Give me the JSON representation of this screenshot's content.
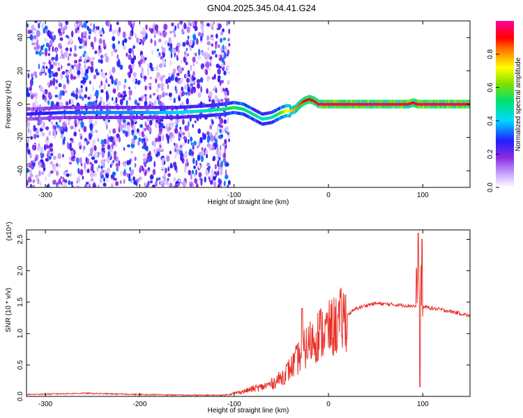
{
  "figure": {
    "title": "GN04.2025.345.04.41.G24"
  },
  "chart_data": [
    {
      "type": "heatmap",
      "name": "spectrogram",
      "xlabel": "Height of straight line (km)",
      "ylabel": "Frequency (Hz)",
      "xlim": [
        -320,
        150
      ],
      "ylim": [
        -50,
        50
      ],
      "xticks": [
        -300,
        -200,
        -100,
        0,
        100
      ],
      "yticks": [
        -40,
        -20,
        0,
        20,
        40
      ],
      "colorbar": {
        "label": "Normalized spectral amplitude",
        "range": [
          0,
          1
        ],
        "ticks": [
          "0.0",
          "0.2",
          "0.4",
          "0.6",
          "0.8"
        ],
        "tick_values": [
          0.0,
          0.2,
          0.4,
          0.6,
          0.8
        ],
        "colormap": "rainbow (white-violet-blue-cyan-green-yellow-red-magenta)"
      },
      "ridge": {
        "x": [
          -320,
          -280,
          -240,
          -200,
          -160,
          -130,
          -110,
          -100,
          -90,
          -80,
          -70,
          -60,
          -50,
          -45,
          -40,
          -35,
          -30,
          -25,
          -20,
          -15,
          -10,
          -5,
          0,
          50,
          85,
          90,
          95,
          150
        ],
        "y": [
          -6,
          -5,
          -5,
          -5,
          -5,
          -4,
          -3,
          -2,
          -3,
          -6,
          -9,
          -8,
          -5,
          -4,
          -4,
          -3,
          0,
          2,
          3,
          2,
          0,
          0,
          0,
          0,
          0,
          1,
          0,
          0
        ],
        "amplitude": [
          0.25,
          0.3,
          0.35,
          0.35,
          0.4,
          0.45,
          0.5,
          0.55,
          0.5,
          0.5,
          0.45,
          0.45,
          0.6,
          0.7,
          0.75,
          0.8,
          0.85,
          0.9,
          0.9,
          0.9,
          0.95,
          0.95,
          0.95,
          0.95,
          0.95,
          0.9,
          0.95,
          0.95
        ]
      },
      "noise_region_x": [
        -320,
        -105
      ]
    },
    {
      "type": "line",
      "name": "snr",
      "xlabel": "Height of straight line (km)",
      "ylabel": "SNR (10 * v/v)",
      "y_multiplier": "(x10⁴)",
      "xlim": [
        -320,
        150
      ],
      "ylim": [
        0,
        2.65
      ],
      "xticks": [
        -300,
        -200,
        -100,
        0,
        100
      ],
      "yticks": [
        "0.0",
        "0.5",
        "1.0",
        "1.5",
        "2.0",
        "2.5"
      ],
      "ytick_values": [
        0.0,
        0.5,
        1.0,
        1.5,
        2.0,
        2.5
      ],
      "color": "#e8322b",
      "envelope": {
        "x": [
          -320,
          -260,
          -200,
          -150,
          -110,
          -100,
          -90,
          -80,
          -70,
          -60,
          -50,
          -40,
          -30,
          -20,
          -10,
          0,
          10,
          20,
          30,
          40,
          50,
          60,
          70,
          80,
          90,
          95,
          100,
          110,
          120,
          130,
          140,
          150
        ],
        "y": [
          0.03,
          0.05,
          0.03,
          0.02,
          0.02,
          0.05,
          0.08,
          0.12,
          0.15,
          0.2,
          0.3,
          0.45,
          0.65,
          0.85,
          1.0,
          1.05,
          1.15,
          1.3,
          1.4,
          1.45,
          1.48,
          1.47,
          1.46,
          1.45,
          1.44,
          1.42,
          1.43,
          1.4,
          1.38,
          1.35,
          1.32,
          1.28
        ]
      },
      "spikes": [
        {
          "x": -28,
          "y": 1.4
        },
        {
          "x": 95,
          "y": 2.6
        },
        {
          "x": 97,
          "y": 0.15
        },
        {
          "x": 99,
          "y": 2.5
        }
      ]
    }
  ]
}
